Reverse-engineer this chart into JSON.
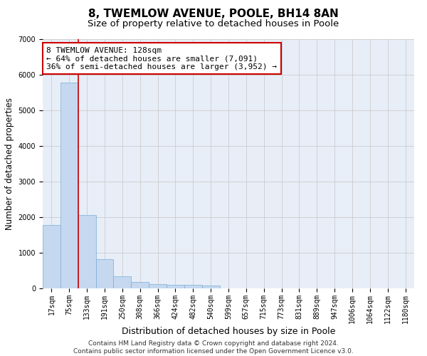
{
  "title": "8, TWEMLOW AVENUE, POOLE, BH14 8AN",
  "subtitle": "Size of property relative to detached houses in Poole",
  "xlabel": "Distribution of detached houses by size in Poole",
  "ylabel": "Number of detached properties",
  "bar_color": "#c5d8f0",
  "bar_edge_color": "#7aadd4",
  "grid_color": "#cccccc",
  "bg_color": "#e8eef8",
  "annotation_box_color": "#cc0000",
  "vline_color": "#cc0000",
  "categories": [
    "17sqm",
    "75sqm",
    "133sqm",
    "191sqm",
    "250sqm",
    "308sqm",
    "366sqm",
    "424sqm",
    "482sqm",
    "540sqm",
    "599sqm",
    "657sqm",
    "715sqm",
    "773sqm",
    "831sqm",
    "889sqm",
    "947sqm",
    "1006sqm",
    "1064sqm",
    "1122sqm",
    "1180sqm"
  ],
  "values": [
    1780,
    5780,
    2060,
    820,
    340,
    190,
    120,
    110,
    110,
    75,
    0,
    0,
    0,
    0,
    0,
    0,
    0,
    0,
    0,
    0,
    0
  ],
  "ylim": [
    0,
    7000
  ],
  "yticks": [
    0,
    1000,
    2000,
    3000,
    4000,
    5000,
    6000,
    7000
  ],
  "vline_pos": 1.5,
  "annotation_line1": "8 TWEMLOW AVENUE: 128sqm",
  "annotation_line2": "← 64% of detached houses are smaller (7,091)",
  "annotation_line3": "36% of semi-detached houses are larger (3,952) →",
  "footer_line1": "Contains HM Land Registry data © Crown copyright and database right 2024.",
  "footer_line2": "Contains public sector information licensed under the Open Government Licence v3.0.",
  "title_fontsize": 11,
  "subtitle_fontsize": 9.5,
  "xlabel_fontsize": 9,
  "ylabel_fontsize": 8.5,
  "tick_fontsize": 7,
  "annotation_fontsize": 8,
  "footer_fontsize": 6.5
}
